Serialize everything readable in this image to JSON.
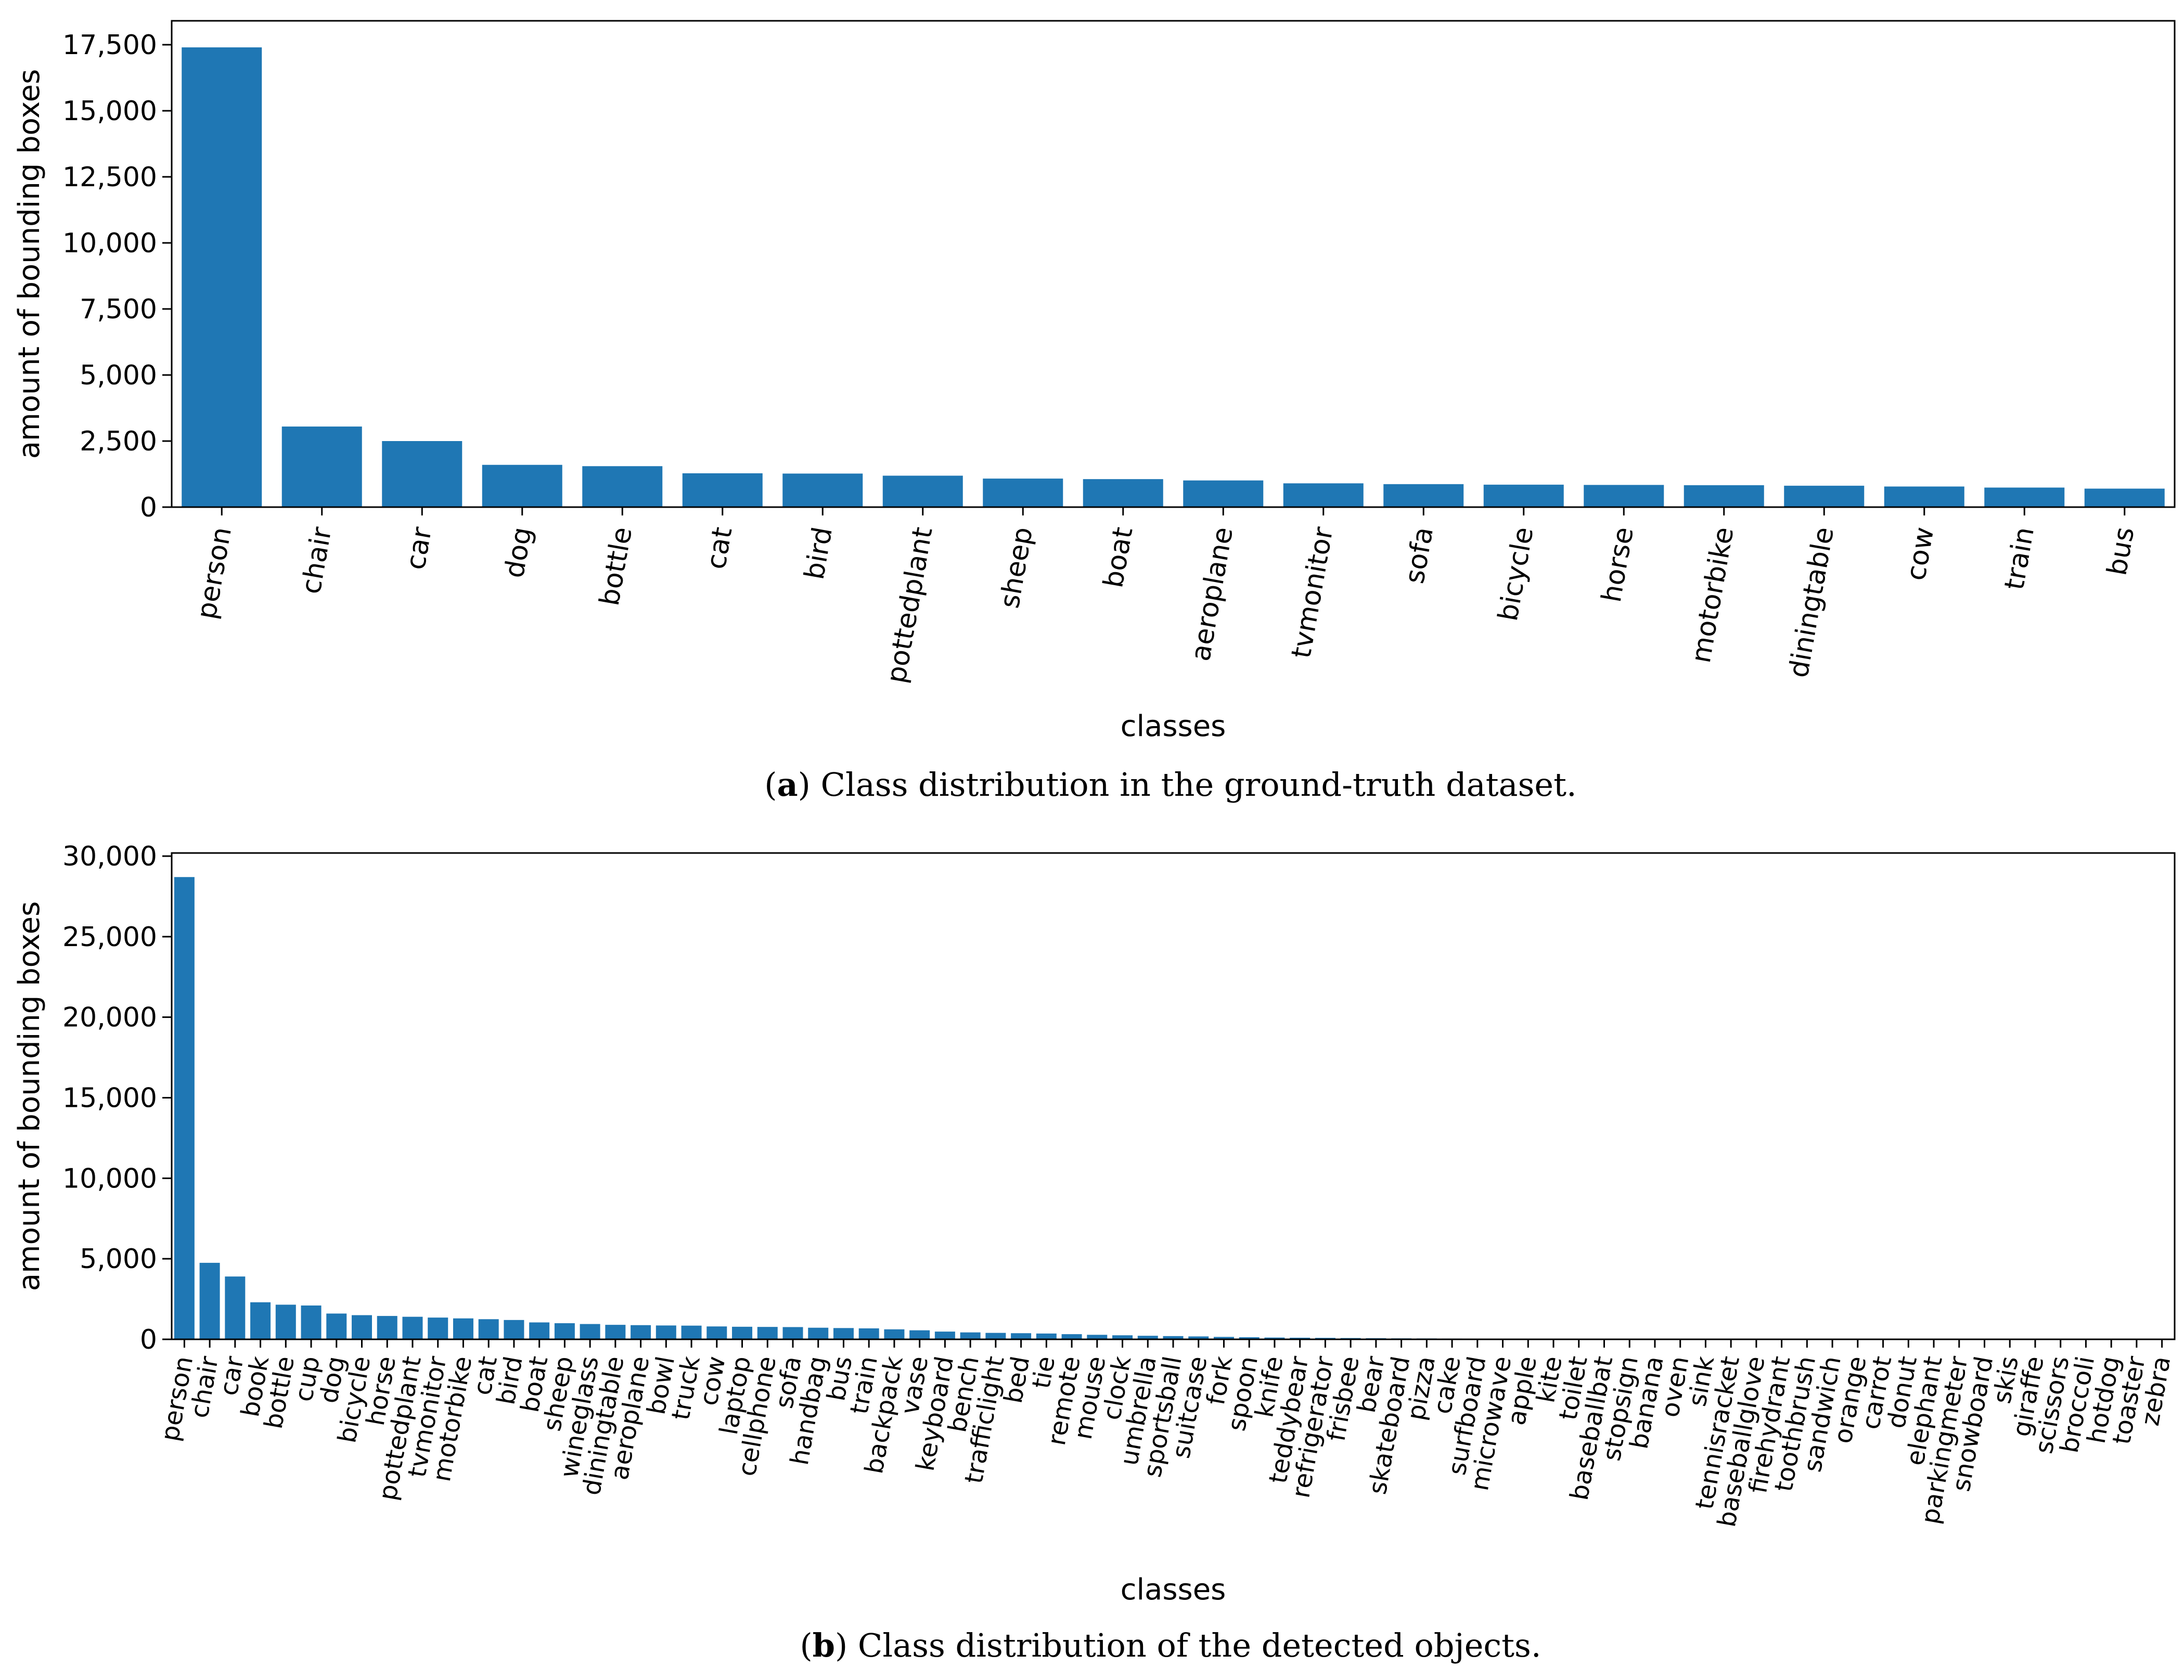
{
  "chart_data": [
    {
      "type": "bar",
      "xlabel": "classes",
      "ylabel": "amount of bounding boxes",
      "ylim": [
        0,
        17500
      ],
      "yticks": [
        0,
        2500,
        5000,
        7500,
        10000,
        12500,
        15000,
        17500
      ],
      "ytick_labels": [
        "0",
        "2,500",
        "5,000",
        "7,500",
        "10,000",
        "12,500",
        "15,000",
        "17,500"
      ],
      "categories": [
        "person",
        "chair",
        "car",
        "dog",
        "bottle",
        "cat",
        "bird",
        "pottedplant",
        "sheep",
        "boat",
        "aeroplane",
        "tvmonitor",
        "sofa",
        "bicycle",
        "horse",
        "motorbike",
        "diningtable",
        "cow",
        "train",
        "bus"
      ],
      "values": [
        17400,
        3050,
        2500,
        1600,
        1550,
        1280,
        1270,
        1190,
        1080,
        1060,
        1010,
        900,
        870,
        850,
        840,
        830,
        810,
        780,
        740,
        700
      ],
      "color": "#1f77b4",
      "caption_label": "a",
      "caption_text": "Class distribution in the ground-truth dataset."
    },
    {
      "type": "bar",
      "xlabel": "classes",
      "ylabel": "amount of bounding boxes",
      "ylim": [
        0,
        30000
      ],
      "yticks": [
        0,
        5000,
        10000,
        15000,
        20000,
        25000,
        30000
      ],
      "ytick_labels": [
        "0",
        "5,000",
        "10,000",
        "15,000",
        "20,000",
        "25,000",
        "30,000"
      ],
      "categories": [
        "person",
        "chair",
        "car",
        "book",
        "bottle",
        "cup",
        "dog",
        "bicycle",
        "horse",
        "pottedplant",
        "tvmonitor",
        "motorbike",
        "cat",
        "bird",
        "boat",
        "sheep",
        "wineglass",
        "diningtable",
        "aeroplane",
        "bowl",
        "truck",
        "cow",
        "laptop",
        "cellphone",
        "sofa",
        "handbag",
        "bus",
        "train",
        "backpack",
        "vase",
        "keyboard",
        "bench",
        "trafficlight",
        "bed",
        "tie",
        "remote",
        "mouse",
        "clock",
        "umbrella",
        "sportsball",
        "suitcase",
        "fork",
        "spoon",
        "knife",
        "teddybear",
        "refrigerator",
        "frisbee",
        "bear",
        "skateboard",
        "pizza",
        "cake",
        "surfboard",
        "microwave",
        "apple",
        "kite",
        "toilet",
        "baseballbat",
        "stopsign",
        "banana",
        "oven",
        "sink",
        "tennisracket",
        "baseballglove",
        "firehydrant",
        "toothbrush",
        "sandwich",
        "orange",
        "carrot",
        "donut",
        "elephant",
        "parkingmeter",
        "snowboard",
        "skis",
        "giraffe",
        "scissors",
        "broccoli",
        "hotdog",
        "toaster",
        "zebra"
      ],
      "values": [
        28700,
        4750,
        3900,
        2300,
        2150,
        2100,
        1600,
        1500,
        1450,
        1400,
        1350,
        1300,
        1250,
        1200,
        1050,
        1000,
        950,
        900,
        880,
        860,
        850,
        800,
        780,
        770,
        760,
        720,
        700,
        680,
        620,
        560,
        480,
        430,
        400,
        380,
        360,
        320,
        280,
        250,
        220,
        200,
        180,
        150,
        130,
        110,
        100,
        90,
        80,
        70,
        60,
        55,
        50,
        45,
        40,
        35,
        30,
        28,
        25,
        22,
        20,
        18,
        16,
        14,
        12,
        11,
        10,
        9,
        8,
        7,
        6,
        5,
        5,
        4,
        4,
        3,
        3,
        2,
        2,
        1,
        1
      ],
      "color": "#1f77b4",
      "caption_label": "b",
      "caption_text": "Class distribution of the detected objects."
    }
  ]
}
